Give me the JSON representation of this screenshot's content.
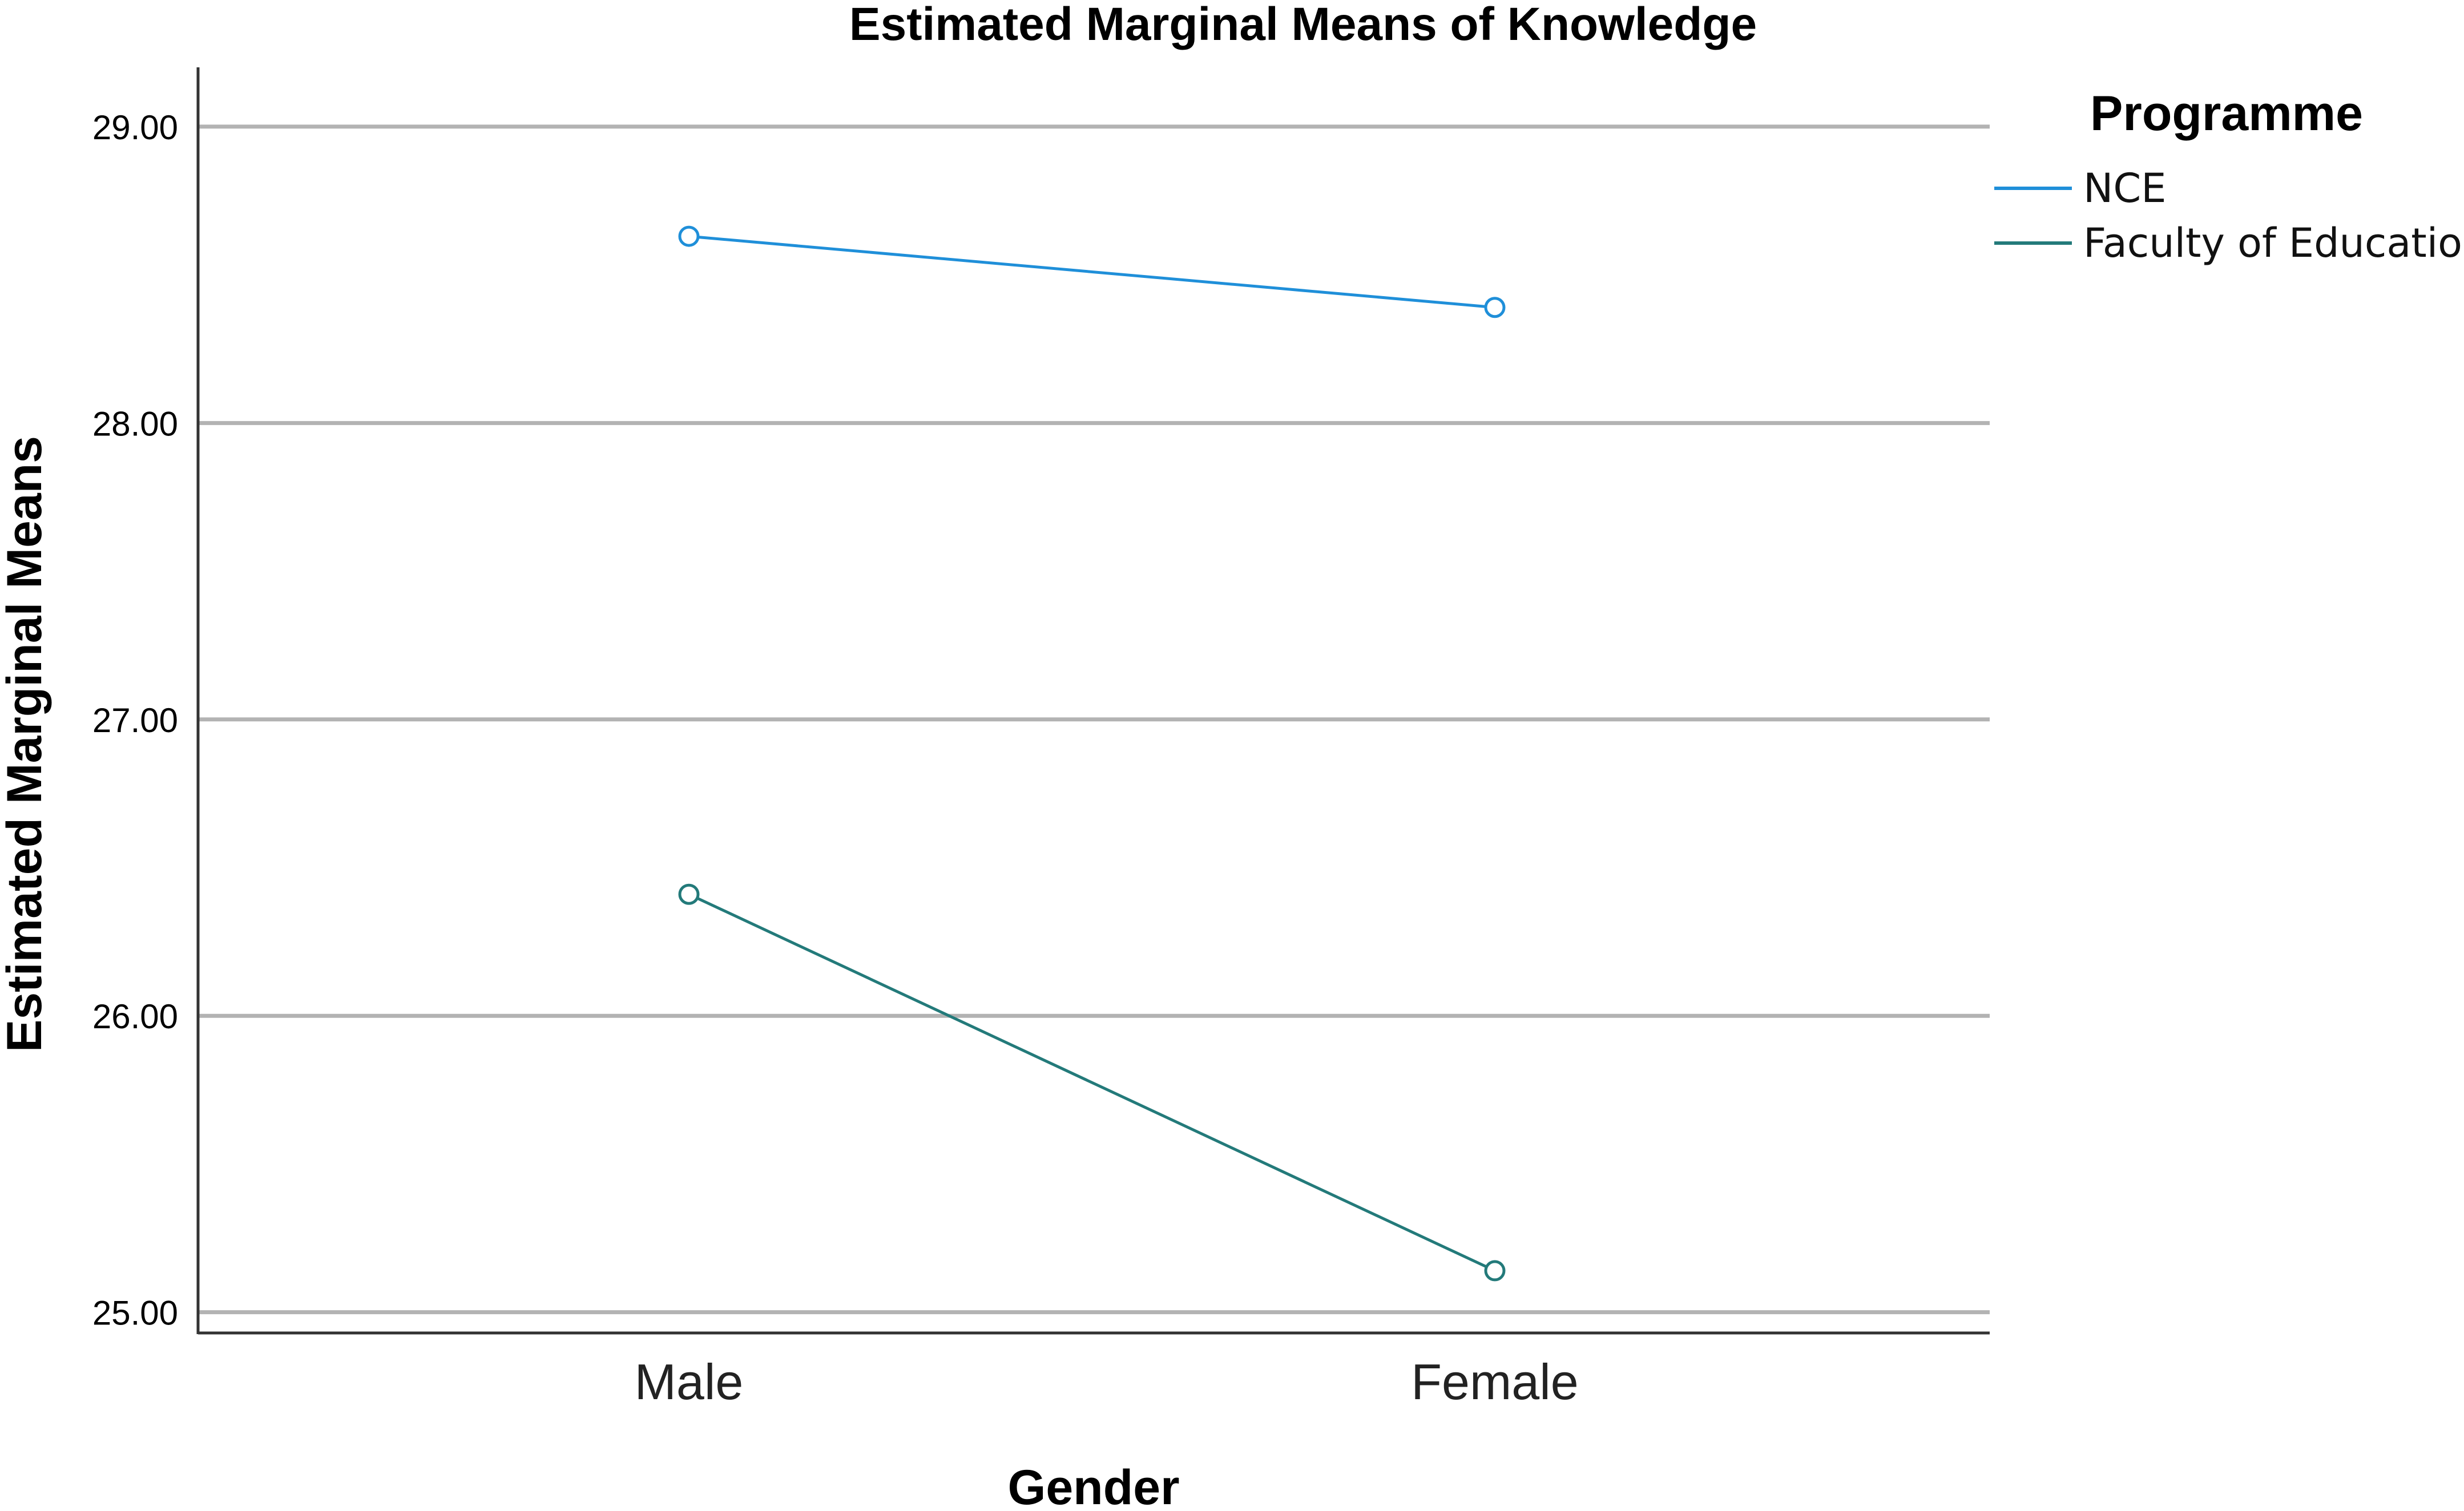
{
  "chart_data": {
    "type": "line",
    "title": "Estimated Marginal Means of Knowledge",
    "xlabel": "Gender",
    "ylabel": "Estimated Marginal Means",
    "categories": [
      "Male",
      "Female"
    ],
    "ylim": [
      24.93,
      29.2
    ],
    "yticks": [
      "25.00",
      "26.00",
      "27.00",
      "28.00",
      "29.00"
    ],
    "grid": true,
    "legend_title": "Programme",
    "legend_position": "right",
    "series": [
      {
        "name": "NCE",
        "values": [
          28.63,
          28.39
        ],
        "color": "#1f8fd9"
      },
      {
        "name": "Faculty of Education",
        "values": [
          26.41,
          25.14
        ],
        "color": "#237a7a"
      }
    ]
  }
}
